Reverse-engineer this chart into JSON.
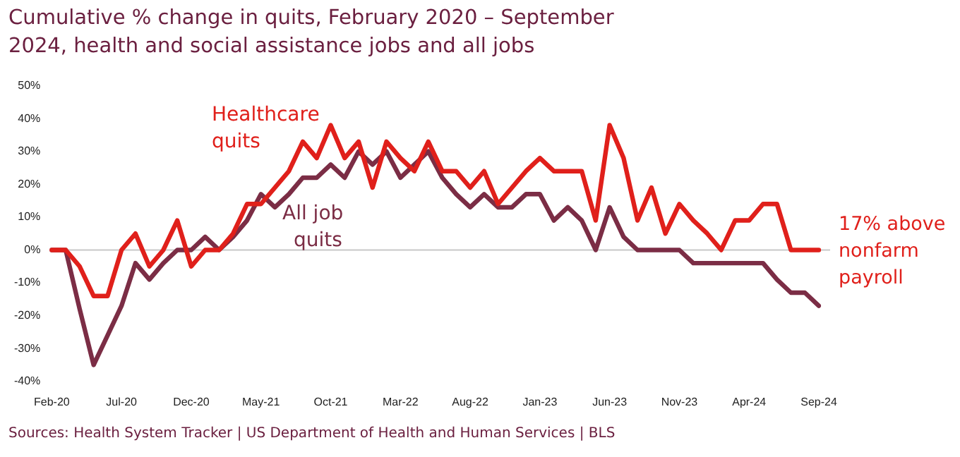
{
  "chart_data": {
    "type": "line",
    "title": "Cumulative % change in quits, February 2020 – September 2024, health and social assistance jobs and all jobs",
    "categories": [
      "Feb-20",
      null,
      null,
      null,
      null,
      "Jul-20",
      null,
      null,
      null,
      null,
      "Dec-20",
      null,
      null,
      null,
      null,
      "May-21",
      null,
      null,
      null,
      null,
      "Oct-21",
      null,
      null,
      null,
      null,
      "Mar-22",
      null,
      null,
      null,
      null,
      "Aug-22",
      null,
      null,
      null,
      null,
      "Jan-23",
      null,
      null,
      null,
      null,
      "Jun-23",
      null,
      null,
      null,
      null,
      "Nov-23",
      null,
      null,
      null,
      null,
      "Apr-24",
      null,
      null,
      null,
      null,
      "Sep-24"
    ],
    "series": [
      {
        "name": "Healthcare quits",
        "color": "#e0201b",
        "values": [
          0,
          0,
          -5,
          -14,
          -14,
          0,
          5,
          -5,
          0,
          9,
          -5,
          0,
          0,
          5,
          14,
          14,
          19,
          24,
          33,
          28,
          38,
          28,
          33,
          19,
          33,
          28,
          24,
          33,
          24,
          24,
          19,
          24,
          14,
          19,
          24,
          28,
          24,
          24,
          24,
          9,
          38,
          28,
          9,
          19,
          5,
          14,
          9,
          5,
          0,
          9,
          9,
          14,
          14,
          0,
          0,
          0
        ]
      },
      {
        "name": "All job quits",
        "color": "#7b2d45",
        "values": [
          0,
          0,
          -18,
          -35,
          -26,
          -17,
          -4,
          -9,
          -4,
          0,
          0,
          4,
          0,
          4,
          9,
          17,
          13,
          17,
          22,
          22,
          26,
          22,
          30,
          26,
          30,
          22,
          26,
          30,
          22,
          17,
          13,
          17,
          13,
          13,
          17,
          17,
          9,
          13,
          9,
          0,
          13,
          4,
          0,
          0,
          0,
          0,
          -4,
          -4,
          -4,
          -4,
          -4,
          -4,
          -9,
          -13,
          -13,
          -17
        ]
      }
    ],
    "ylim": [
      -40,
      50
    ],
    "yticks": [
      {
        "value": -40,
        "label": "-40%"
      },
      {
        "value": -30,
        "label": "-30%"
      },
      {
        "value": -20,
        "label": "-20%"
      },
      {
        "value": -10,
        "label": "-10%"
      },
      {
        "value": 0,
        "label": "0%"
      },
      {
        "value": 10,
        "label": "10%"
      },
      {
        "value": 20,
        "label": "20%"
      },
      {
        "value": 30,
        "label": "30%"
      },
      {
        "value": 40,
        "label": "40%"
      },
      {
        "value": 50,
        "label": "50%"
      }
    ],
    "grid": false,
    "legend": false,
    "marker": "none",
    "line_style": "solid",
    "ref_lines": [
      {
        "axis": "y",
        "value": 0,
        "color": "#c8c8c8"
      }
    ],
    "annotations": [
      "17% above nonfarm payroll",
      "Sources: Health System Tracker | US Department of Health and Human Services | BLS"
    ]
  }
}
